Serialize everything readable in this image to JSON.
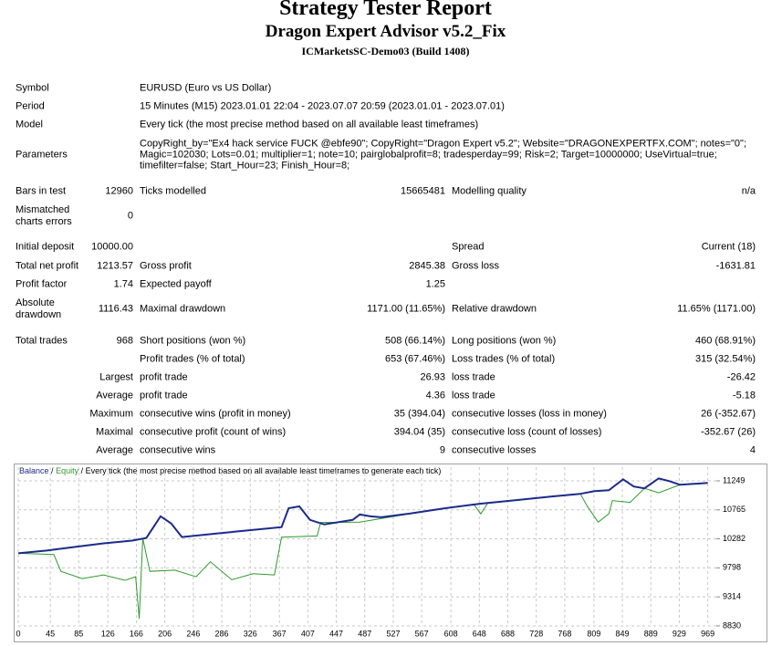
{
  "header": {
    "title": "Strategy Tester Report",
    "subtitle": "Dragon Expert Advisor v5.2_Fix",
    "server": "ICMarketsSC-Demo03 (Build 1408)"
  },
  "info": [
    {
      "label": "Symbol",
      "value": [
        "EURUSD (Euro vs US Dollar)"
      ]
    },
    {
      "label": "Period",
      "value": [
        "15 Minutes (M15) 2023.01.01 22:04 - 2023.07.07 20:59 (2023.01.01 - 2023.07.01)"
      ]
    },
    {
      "label": "Model",
      "value": [
        "Every tick (the most precise method based on all available least timeframes)"
      ]
    },
    {
      "label": "Parameters",
      "value": [
        "CopyRight_by=\"Ex4 hack service FUCK @ebfe90\"; CopyRight=\"Dragon Expert v5.2\"; Website=\"DRAGONEXPERTFX.COM\"; notes=\"0\";",
        "Magic=102030; Lots=0.01; multiplier=1; note=10; pairglobalprofit=8; tradesperday=99; Risk=2; Target=10000000; UseVirtual=true;",
        "timefilter=false; Start_Hour=23; Finish_Hour=8;"
      ]
    }
  ],
  "stats": [
    [
      "Bars in test",
      "12960",
      "Ticks modelled",
      "15665481",
      "Modelling quality",
      "n/a"
    ],
    [
      "Mismatched charts errors",
      "0",
      null,
      null,
      null,
      null
    ],
    [
      "Initial deposit",
      "10000.00",
      null,
      null,
      "Spread",
      "Current (18)"
    ],
    [
      "Total net profit",
      "1213.57",
      "Gross profit",
      "2845.38",
      "Gross loss",
      "-1631.81"
    ],
    [
      "Profit factor",
      "1.74",
      "Expected payoff",
      "1.25",
      null,
      null
    ],
    [
      "Absolute drawdown",
      "1116.43",
      "Maximal drawdown",
      "1171.00 (11.65%)",
      "Relative drawdown",
      "11.65% (1171.00)"
    ],
    [
      "Total trades",
      "968",
      "Short positions (won %)",
      "508 (66.14%)",
      "Long positions (won %)",
      "460 (68.91%)"
    ],
    [
      null,
      null,
      "Profit trades (% of total)",
      "653 (67.46%)",
      "Loss trades (% of total)",
      "315 (32.54%)"
    ],
    [
      null,
      "Largest",
      "profit trade",
      "26.93",
      "loss trade",
      "-26.42"
    ],
    [
      null,
      "Average",
      "profit trade",
      "4.36",
      "loss trade",
      "-5.18"
    ],
    [
      null,
      "Maximum",
      "consecutive wins (profit in money)",
      "35 (394.04)",
      "consecutive losses (loss in money)",
      "26 (-352.67)"
    ],
    [
      null,
      "Maximal",
      "consecutive profit (count of wins)",
      "394.04 (35)",
      "consecutive loss (count of losses)",
      "-352.67 (26)"
    ],
    [
      null,
      "Average",
      "consecutive wins",
      "9",
      "consecutive losses",
      "4"
    ]
  ],
  "chart_data": {
    "type": "line",
    "subtitle": "Every tick (the most precise method based on all available least timeframes to generate each tick)",
    "separator": "/",
    "xlim": [
      0,
      981
    ],
    "xticks": [
      0,
      45,
      85,
      126,
      166,
      206,
      246,
      286,
      326,
      367,
      407,
      447,
      487,
      527,
      567,
      608,
      648,
      688,
      728,
      768,
      809,
      849,
      889,
      929,
      969
    ],
    "ylim": [
      8830,
      11477
    ],
    "yticks": [
      8830,
      9314,
      9798,
      10282,
      10765,
      11249
    ],
    "grid": true,
    "series": [
      {
        "name": "Balance",
        "color": "#1c2a8a",
        "x": [
          0,
          40,
          80,
          120,
          160,
          180,
          200,
          215,
          230,
          280,
          330,
          370,
          380,
          395,
          410,
          430,
          470,
          480,
          495,
          510,
          550,
          600,
          650,
          700,
          750,
          790,
          810,
          830,
          850,
          865,
          880,
          900,
          915,
          930,
          950,
          969
        ],
        "values": [
          10042,
          10087,
          10147,
          10207,
          10252,
          10297,
          10658,
          10537,
          10312,
          10372,
          10432,
          10477,
          10793,
          10823,
          10598,
          10522,
          10598,
          10688,
          10658,
          10643,
          10703,
          10793,
          10868,
          10928,
          10988,
          11033,
          11078,
          11093,
          11274,
          11154,
          11124,
          11289,
          11244,
          11184,
          11199,
          11214
        ]
      },
      {
        "name": "Equity",
        "color": "#2e9a2e",
        "x": [
          0,
          50,
          60,
          90,
          120,
          150,
          165,
          170,
          175,
          185,
          220,
          250,
          270,
          300,
          330,
          360,
          370,
          420,
          425,
          480,
          550,
          600,
          640,
          650,
          660,
          790,
          800,
          815,
          830,
          835,
          860,
          880,
          900,
          930,
          969
        ],
        "values": [
          10042,
          10020,
          9740,
          9620,
          9680,
          9590,
          9650,
          8950,
          10290,
          9740,
          9760,
          9650,
          9900,
          9600,
          9700,
          9680,
          10310,
          10330,
          10555,
          10560,
          10700,
          10790,
          10860,
          10700,
          10880,
          11030,
          10820,
          10560,
          10700,
          10920,
          10890,
          11124,
          11050,
          11184,
          11214
        ]
      }
    ]
  }
}
